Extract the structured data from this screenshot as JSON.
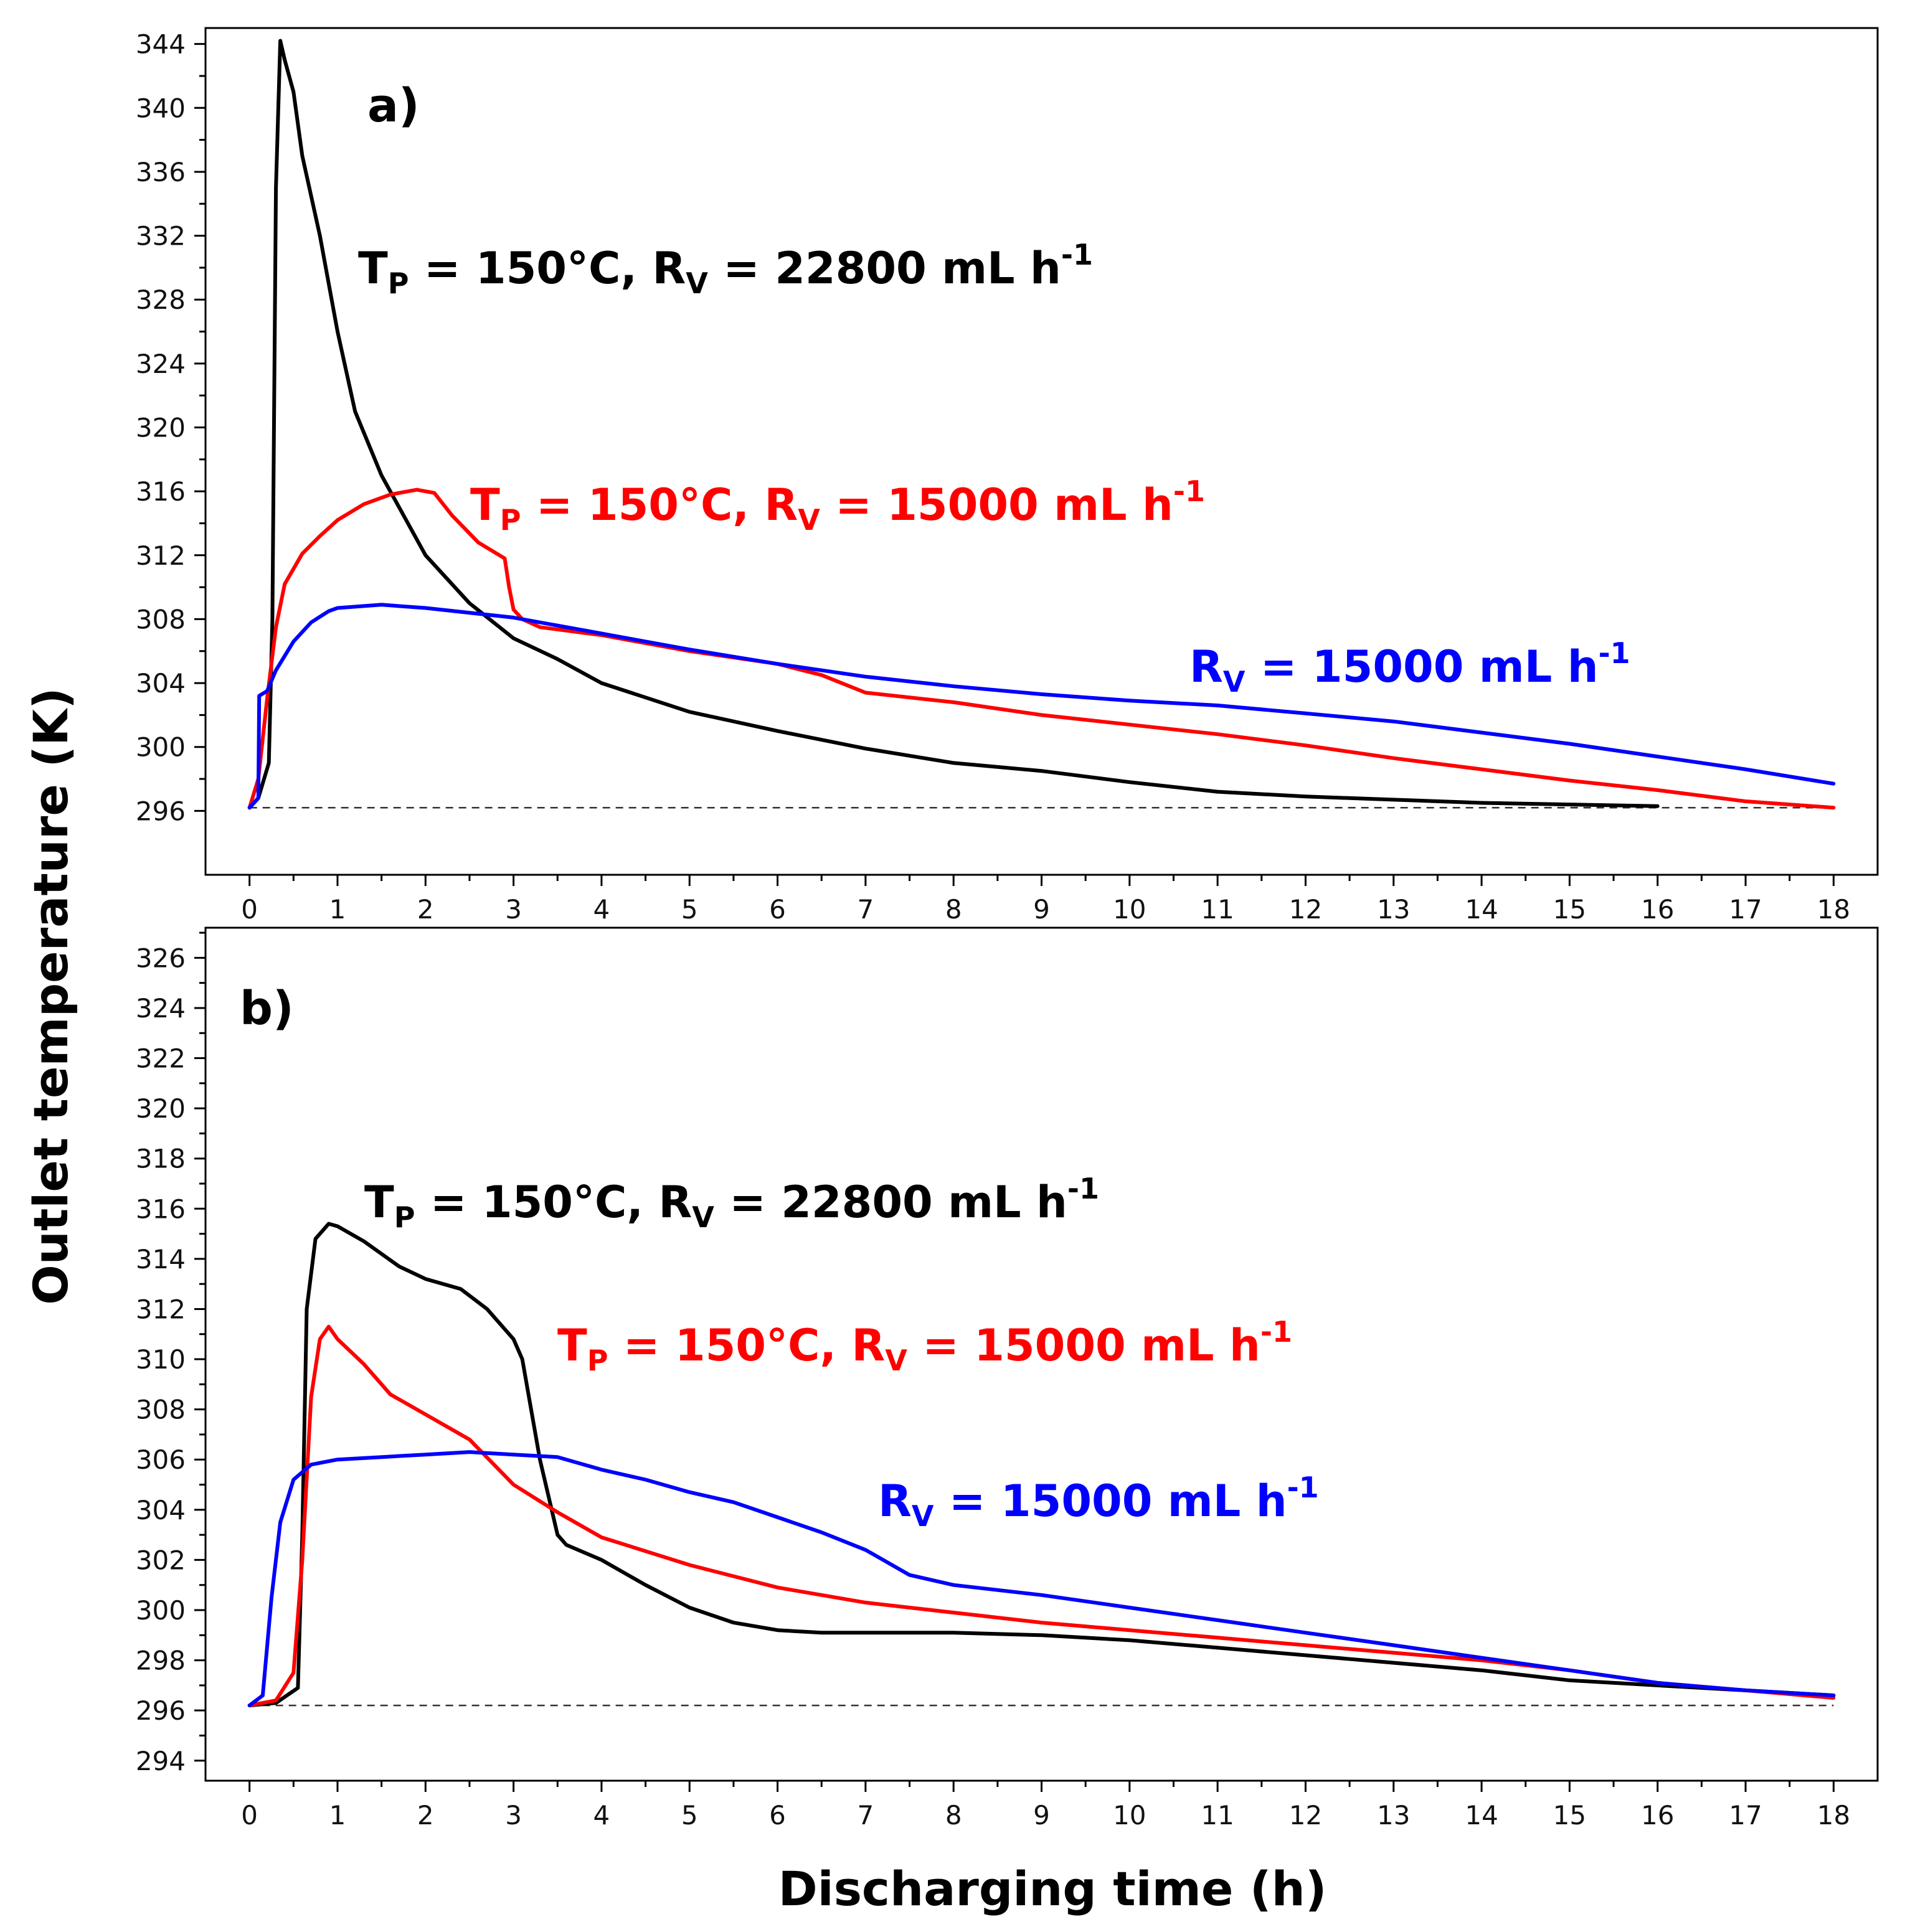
{
  "figure": {
    "ylabel": "Outlet temperature (K)",
    "xlabel": "Discharging time (h)"
  },
  "chart_data": [
    {
      "type": "line",
      "panel": "a)",
      "xlim": [
        -0.5,
        18.5
      ],
      "ylim": [
        292,
        345
      ],
      "xticks": [
        0,
        1,
        2,
        3,
        4,
        5,
        6,
        7,
        8,
        9,
        10,
        11,
        12,
        13,
        14,
        15,
        16,
        17,
        18
      ],
      "yticks": [
        296,
        300,
        304,
        308,
        312,
        316,
        320,
        324,
        328,
        332,
        336,
        340,
        344
      ],
      "reference_line": 296.2,
      "series": [
        {
          "name": "black",
          "color": "#000000",
          "x": [
            0,
            0.1,
            0.22,
            0.26,
            0.3,
            0.35,
            0.4,
            0.5,
            0.6,
            0.8,
            1,
            1.2,
            1.5,
            1.7,
            2,
            2.5,
            3,
            3.5,
            4,
            5,
            6,
            7,
            8,
            9,
            10,
            11,
            12,
            13,
            14,
            15,
            16
          ],
          "y": [
            296.2,
            296.8,
            299,
            308,
            335,
            344.2,
            343,
            341,
            337,
            332,
            326,
            321,
            317,
            315,
            312,
            309,
            306.8,
            305.5,
            304,
            302.2,
            301,
            299.9,
            299,
            298.5,
            297.8,
            297.2,
            296.9,
            296.7,
            296.5,
            296.4,
            296.3
          ]
        },
        {
          "name": "red",
          "color": "#ff0000",
          "x": [
            0,
            0.1,
            0.2,
            0.3,
            0.4,
            0.6,
            0.8,
            1,
            1.3,
            1.6,
            1.9,
            2.1,
            2.3,
            2.6,
            2.9,
            2.95,
            3,
            3.1,
            3.3,
            4,
            5,
            6,
            6.5,
            7,
            8,
            9,
            10,
            11,
            12,
            13,
            14,
            15,
            16,
            17,
            18
          ],
          "y": [
            296.2,
            298,
            303,
            307.5,
            310.2,
            312.1,
            313.2,
            314.2,
            315.2,
            315.8,
            316.1,
            315.9,
            314.5,
            312.8,
            311.8,
            310,
            308.6,
            308,
            307.5,
            307,
            306,
            305.2,
            304.5,
            303.4,
            302.8,
            302,
            301.4,
            300.8,
            300.1,
            299.3,
            298.6,
            297.9,
            297.3,
            296.6,
            296.2
          ]
        },
        {
          "name": "blue",
          "color": "#0000ff",
          "x": [
            0,
            0.1,
            0.11,
            0.2,
            0.3,
            0.5,
            0.7,
            0.9,
            1,
            1.5,
            2,
            3,
            4,
            5,
            6,
            7,
            8,
            9,
            10,
            11,
            12,
            13,
            14,
            15,
            16,
            17,
            18
          ],
          "y": [
            296.2,
            296.8,
            303.2,
            303.5,
            304.8,
            306.6,
            307.8,
            308.5,
            308.7,
            308.9,
            308.7,
            308.1,
            307.1,
            306.1,
            305.2,
            304.4,
            303.8,
            303.3,
            302.9,
            302.6,
            302.1,
            301.6,
            300.9,
            300.2,
            299.4,
            298.6,
            297.7
          ]
        }
      ],
      "annotations": [
        {
          "main": "T",
          "sub": "P",
          "mid": " = 150°C, R",
          "sub2": "V",
          "tail": " = 22800 mL h",
          "sup": "-1",
          "color": "#000000"
        },
        {
          "main": "T",
          "sub": "P",
          "mid": " = 150°C, R",
          "sub2": "V",
          "tail": " = 15000 mL h",
          "sup": "-1",
          "color": "#ff0000"
        },
        {
          "main": "R",
          "sub": "V",
          "mid": "",
          "sub2": "",
          "tail": " = 15000 mL h",
          "sup": "-1",
          "color": "#0000ff"
        }
      ]
    },
    {
      "type": "line",
      "panel": "b)",
      "xlim": [
        -0.5,
        18.5
      ],
      "ylim": [
        293.2,
        327.2
      ],
      "xticks": [
        0,
        1,
        2,
        3,
        4,
        5,
        6,
        7,
        8,
        9,
        10,
        11,
        12,
        13,
        14,
        15,
        16,
        17,
        18
      ],
      "yticks": [
        294,
        296,
        298,
        300,
        302,
        304,
        306,
        308,
        310,
        312,
        314,
        316,
        318,
        320,
        322,
        324,
        326
      ],
      "reference_line": 296.2,
      "series": [
        {
          "name": "black",
          "color": "#000000",
          "x": [
            0,
            0.3,
            0.55,
            0.6,
            0.65,
            0.75,
            0.9,
            1,
            1.3,
            1.7,
            2,
            2.4,
            2.7,
            3,
            3.1,
            3.3,
            3.5,
            3.6,
            4,
            4.5,
            5,
            5.5,
            6,
            6.5,
            7,
            8,
            9,
            10,
            11,
            12,
            13,
            14,
            15,
            16,
            17,
            18
          ],
          "y": [
            296.2,
            296.3,
            296.9,
            303,
            312,
            314.8,
            315.4,
            315.3,
            314.7,
            313.7,
            313.2,
            312.8,
            312,
            310.8,
            310,
            306,
            303,
            302.6,
            302,
            301,
            300.1,
            299.5,
            299.2,
            299.1,
            299.1,
            299.1,
            299,
            298.8,
            298.5,
            298.2,
            297.9,
            297.6,
            297.2,
            297,
            296.8,
            296.6
          ]
        },
        {
          "name": "red",
          "color": "#ff0000",
          "x": [
            0,
            0.3,
            0.5,
            0.6,
            0.7,
            0.8,
            0.9,
            1,
            1.3,
            1.6,
            2,
            2.5,
            3,
            3.5,
            4,
            5,
            6,
            7,
            8,
            9,
            10,
            11,
            12,
            13,
            14,
            15,
            16,
            17,
            18
          ],
          "y": [
            296.2,
            296.4,
            297.5,
            302,
            308.5,
            310.8,
            311.3,
            310.8,
            309.8,
            308.6,
            307.8,
            306.8,
            305,
            303.9,
            302.9,
            301.8,
            300.9,
            300.3,
            299.9,
            299.5,
            299.2,
            298.9,
            298.6,
            298.3,
            298,
            297.6,
            297.1,
            296.8,
            296.5
          ]
        },
        {
          "name": "blue",
          "color": "#0000ff",
          "x": [
            0,
            0.15,
            0.25,
            0.35,
            0.5,
            0.7,
            1,
            1.5,
            2,
            2.5,
            3,
            3.5,
            4,
            4.5,
            5,
            5.5,
            6,
            6.5,
            7,
            7.5,
            8,
            9,
            10,
            11,
            12,
            13,
            14,
            15,
            16,
            17,
            18
          ],
          "y": [
            296.2,
            296.6,
            300.5,
            303.5,
            305.2,
            305.8,
            306,
            306.1,
            306.2,
            306.3,
            306.2,
            306.1,
            305.6,
            305.2,
            304.7,
            304.3,
            303.7,
            303.1,
            302.4,
            301.4,
            301,
            300.6,
            300.1,
            299.6,
            299.1,
            298.6,
            298.1,
            297.6,
            297.1,
            296.8,
            296.6
          ]
        }
      ],
      "annotations": [
        {
          "main": "T",
          "sub": "P",
          "mid": " = 150°C, R",
          "sub2": "V",
          "tail": " = 22800 mL h",
          "sup": "-1",
          "color": "#000000"
        },
        {
          "main": "T",
          "sub": "P",
          "mid": " = 150°C, R",
          "sub2": "V",
          "tail": " = 15000 mL h",
          "sup": "-1",
          "color": "#ff0000"
        },
        {
          "main": "R",
          "sub": "V",
          "mid": "",
          "sub2": "",
          "tail": " = 15000 mL h",
          "sup": "-1",
          "color": "#0000ff"
        }
      ]
    }
  ]
}
